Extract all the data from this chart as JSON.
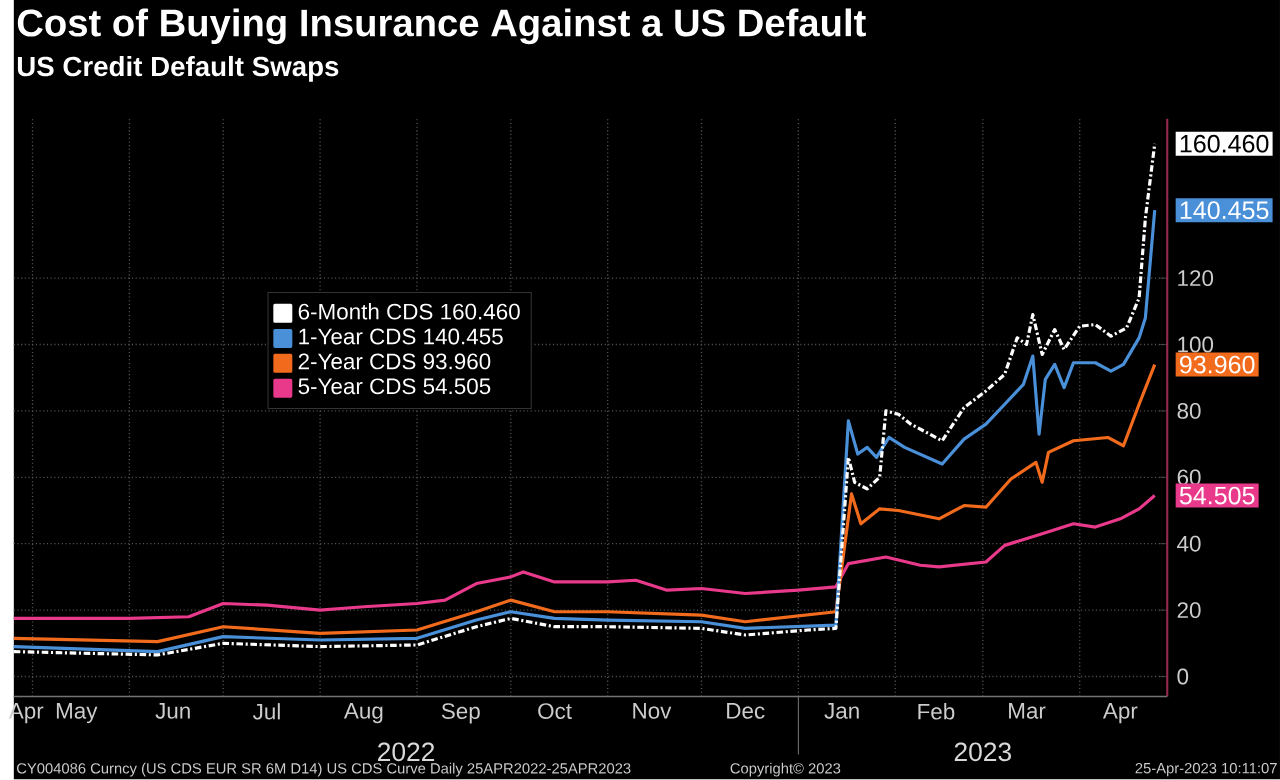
{
  "chart_data": {
    "type": "line",
    "title": "Cost of Buying Insurance Against a US Default",
    "subtitle": "US Credit Default Swaps",
    "xlim": [
      "2022-04-25",
      "2023-04-29"
    ],
    "ylim": [
      -6,
      168
    ],
    "yticks": [
      0,
      20,
      40,
      60,
      80,
      100,
      120
    ],
    "xticks": [
      {
        "value": "2022-05-01",
        "label": null
      },
      {
        "value": "2022-06-01",
        "label": null
      },
      {
        "value": "2022-07-01",
        "label": null
      },
      {
        "value": "2022-08-01",
        "label": null
      },
      {
        "value": "2022-09-01",
        "label": null
      },
      {
        "value": "2022-10-01",
        "label": null
      },
      {
        "value": "2022-11-01",
        "label": null
      },
      {
        "value": "2022-12-01",
        "label": null
      },
      {
        "value": "2023-01-01",
        "label": null
      },
      {
        "value": "2023-02-01",
        "label": null
      },
      {
        "value": "2023-03-01",
        "label": null
      },
      {
        "value": "2023-04-01",
        "label": null
      },
      {
        "value": "2022-04-29",
        "label": "Apr"
      },
      {
        "value": "2022-05-15",
        "label": "May"
      },
      {
        "value": "2022-06-15",
        "label": "Jun"
      },
      {
        "value": "2022-07-15",
        "label": "Jul"
      },
      {
        "value": "2022-08-15",
        "label": "Aug"
      },
      {
        "value": "2022-09-15",
        "label": "Sep"
      },
      {
        "value": "2022-10-15",
        "label": "Oct"
      },
      {
        "value": "2022-11-15",
        "label": "Nov"
      },
      {
        "value": "2022-12-15",
        "label": "Dec"
      },
      {
        "value": "2023-01-15",
        "label": "Jan"
      },
      {
        "value": "2023-02-14",
        "label": "Feb"
      },
      {
        "value": "2023-03-15",
        "label": "Mar"
      },
      {
        "value": "2023-04-14",
        "label": "Apr"
      }
    ],
    "grid": true,
    "legend": "top left",
    "series": [
      {
        "name": "6-Month CDS 160.460",
        "color": "#ffffff",
        "line_style": "dashed",
        "x": [
          "2022-04-25",
          "2022-06-10",
          "2022-07-01",
          "2022-08-01",
          "2022-09-01",
          "2022-09-20",
          "2022-10-01",
          "2022-10-15",
          "2022-11-01",
          "2022-12-01",
          "2022-12-15",
          "2023-01-04",
          "2023-01-13",
          "2023-01-17",
          "2023-01-19",
          "2023-01-23",
          "2023-01-27",
          "2023-01-29",
          "2023-02-02",
          "2023-02-06",
          "2023-02-16",
          "2023-02-23",
          "2023-03-02",
          "2023-03-08",
          "2023-03-12",
          "2023-03-15",
          "2023-03-17",
          "2023-03-20",
          "2023-03-24",
          "2023-03-27",
          "2023-04-01",
          "2023-04-06",
          "2023-04-11",
          "2023-04-16",
          "2023-04-20",
          "2023-04-22",
          "2023-04-25"
        ],
        "values": [
          7.5,
          6.5,
          10,
          9,
          9.5,
          15,
          17.5,
          15,
          15,
          14.5,
          12.5,
          14,
          14.5,
          66,
          58.5,
          56.5,
          60,
          80,
          79,
          76,
          71,
          81,
          86,
          91,
          102,
          100,
          109,
          97,
          104.5,
          98.5,
          105.5,
          106,
          102.5,
          105,
          114,
          138,
          160.46
        ],
        "value_labels": [
          null,
          null,
          null,
          null,
          null,
          null,
          null,
          null,
          null,
          null,
          null,
          null,
          null,
          null,
          null,
          null,
          null,
          null,
          null,
          null,
          null,
          null,
          null,
          null,
          null,
          null,
          null,
          null,
          null,
          null,
          null,
          null,
          null,
          null,
          null,
          null,
          "160.460"
        ]
      },
      {
        "name": "1-Year CDS  140.455",
        "color": "#4a90d9",
        "x": [
          "2022-04-25",
          "2022-06-10",
          "2022-07-01",
          "2022-08-01",
          "2022-09-01",
          "2022-09-20",
          "2022-10-01",
          "2022-10-15",
          "2022-11-01",
          "2022-12-01",
          "2022-12-15",
          "2023-01-13",
          "2023-01-17",
          "2023-01-20",
          "2023-01-23",
          "2023-01-26",
          "2023-01-30",
          "2023-02-04",
          "2023-02-16",
          "2023-02-23",
          "2023-03-02",
          "2023-03-08",
          "2023-03-14",
          "2023-03-17",
          "2023-03-19",
          "2023-03-21",
          "2023-03-24",
          "2023-03-27",
          "2023-03-30",
          "2023-04-06",
          "2023-04-11",
          "2023-04-15",
          "2023-04-20",
          "2023-04-22",
          "2023-04-25"
        ],
        "values": [
          9,
          7.5,
          12,
          11,
          11.5,
          17,
          19.5,
          17.5,
          17,
          16.5,
          14.5,
          15.5,
          77,
          67,
          69,
          66,
          72,
          69,
          64,
          71.5,
          76,
          82,
          88,
          96.5,
          73,
          89.5,
          94,
          87,
          94.5,
          94.5,
          92,
          94,
          102,
          108,
          140.455
        ],
        "value_labels": [
          null,
          null,
          null,
          null,
          null,
          null,
          null,
          null,
          null,
          null,
          null,
          null,
          null,
          null,
          null,
          null,
          null,
          null,
          null,
          null,
          null,
          null,
          null,
          null,
          null,
          null,
          null,
          null,
          null,
          null,
          null,
          null,
          null,
          null,
          "140.455"
        ]
      },
      {
        "name": "2-Year CDS  93.960",
        "color": "#f26b1d",
        "x": [
          "2022-04-25",
          "2022-06-10",
          "2022-07-01",
          "2022-08-01",
          "2022-09-01",
          "2022-09-20",
          "2022-10-01",
          "2022-10-15",
          "2022-11-01",
          "2022-12-01",
          "2022-12-15",
          "2023-01-13",
          "2023-01-18",
          "2023-01-21",
          "2023-01-27",
          "2023-02-02",
          "2023-02-15",
          "2023-02-23",
          "2023-03-02",
          "2023-03-10",
          "2023-03-18",
          "2023-03-20",
          "2023-03-22",
          "2023-03-30",
          "2023-04-10",
          "2023-04-15",
          "2023-04-20",
          "2023-04-25"
        ],
        "values": [
          11.5,
          10.5,
          15,
          13,
          14,
          19.5,
          23,
          19.5,
          19.5,
          18.5,
          16.5,
          19.5,
          55,
          46,
          50.5,
          50,
          47.5,
          51.5,
          51,
          59.5,
          64.5,
          58.5,
          67.5,
          71,
          72,
          69.5,
          82,
          93.96
        ],
        "value_labels": [
          null,
          null,
          null,
          null,
          null,
          null,
          null,
          null,
          null,
          null,
          null,
          null,
          null,
          null,
          null,
          null,
          null,
          null,
          null,
          null,
          null,
          null,
          null,
          null,
          null,
          null,
          null,
          "93.960"
        ]
      },
      {
        "name": "5-Year CDS  54.505",
        "color": "#e8398b",
        "x": [
          "2022-04-25",
          "2022-06-01",
          "2022-06-20",
          "2022-07-01",
          "2022-07-15",
          "2022-08-01",
          "2022-08-15",
          "2022-09-01",
          "2022-09-10",
          "2022-09-20",
          "2022-10-01",
          "2022-10-05",
          "2022-10-15",
          "2022-11-01",
          "2022-11-10",
          "2022-11-20",
          "2022-12-01",
          "2022-12-15",
          "2023-01-01",
          "2023-01-13",
          "2023-01-17",
          "2023-01-29",
          "2023-02-09",
          "2023-02-15",
          "2023-03-02",
          "2023-03-08",
          "2023-03-20",
          "2023-03-30",
          "2023-04-06",
          "2023-04-14",
          "2023-04-20",
          "2023-04-25"
        ],
        "values": [
          17.5,
          17.5,
          18,
          22,
          21.5,
          20,
          21,
          22,
          23,
          28,
          30,
          31.5,
          28.5,
          28.5,
          29,
          26,
          26.5,
          25,
          26,
          27,
          34,
          36,
          33.5,
          33,
          34.5,
          39.5,
          43,
          46,
          45,
          47.5,
          50.5,
          54.505
        ],
        "value_labels": [
          null,
          null,
          null,
          null,
          null,
          null,
          null,
          null,
          null,
          null,
          null,
          null,
          null,
          null,
          null,
          null,
          null,
          null,
          null,
          null,
          null,
          null,
          null,
          null,
          null,
          null,
          null,
          null,
          null,
          null,
          null,
          "54.505"
        ]
      }
    ],
    "annotations": [
      "2022",
      "2023",
      "CY004086 Curncy (US CDS EUR SR 6M D14) US CDS Curve  Daily 25APR2022-25APR2023",
      "Copyright© 2023",
      "25-Apr-2023 10:11:07"
    ]
  }
}
